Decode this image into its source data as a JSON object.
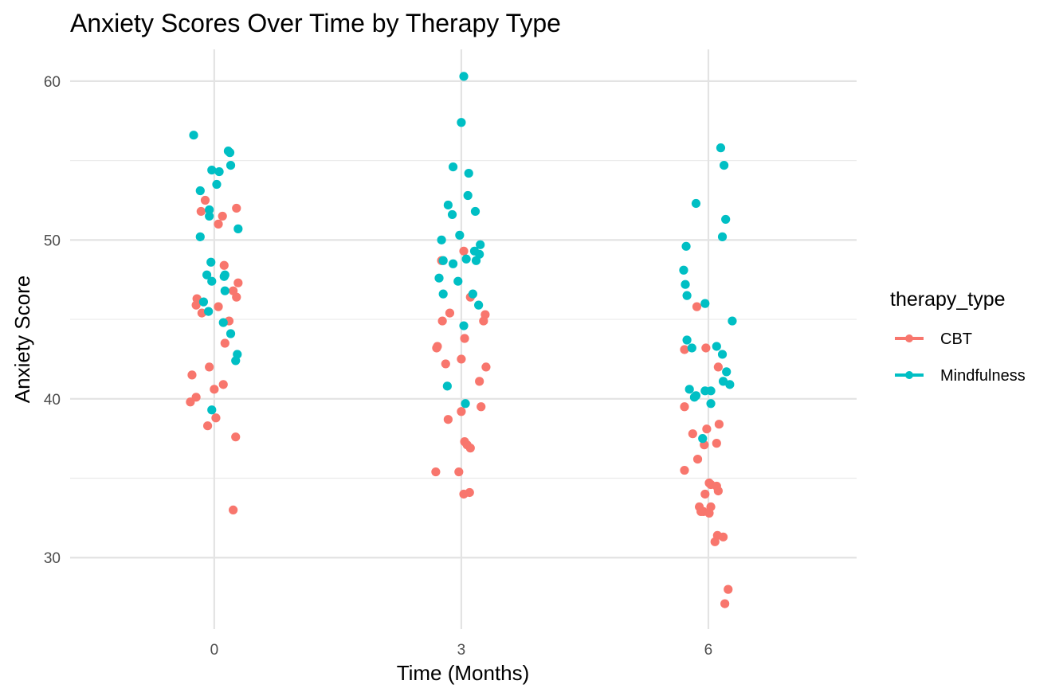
{
  "chart_data": {
    "type": "scatter",
    "title": "Anxiety Scores Over Time by Therapy Type",
    "xlabel": "Time (Months)",
    "ylabel": "Anxiety Score",
    "xlim": [
      -1.75,
      7.8
    ],
    "ylim": [
      25.5,
      62
    ],
    "x_ticks": [
      0,
      3,
      6
    ],
    "x_tick_labels": [
      "0",
      "3",
      "6"
    ],
    "y_ticks": [
      30,
      40,
      50,
      60
    ],
    "y_tick_labels": [
      "30",
      "40",
      "50",
      "60"
    ],
    "grid": true,
    "legend": {
      "title": "therapy_type",
      "position": "right"
    },
    "series": [
      {
        "name": "CBT",
        "color": "#F8766D",
        "points": [
          {
            "x": -0.11,
            "y": 52.5
          },
          {
            "x": -0.16,
            "y": 51.8
          },
          {
            "x": 0.1,
            "y": 51.5
          },
          {
            "x": 0.27,
            "y": 52.0
          },
          {
            "x": 0.05,
            "y": 51.0
          },
          {
            "x": 0.12,
            "y": 48.4
          },
          {
            "x": 0.29,
            "y": 47.3
          },
          {
            "x": 0.23,
            "y": 46.8
          },
          {
            "x": -0.21,
            "y": 46.3
          },
          {
            "x": 0.27,
            "y": 46.4
          },
          {
            "x": -0.22,
            "y": 45.9
          },
          {
            "x": 0.05,
            "y": 45.8
          },
          {
            "x": -0.15,
            "y": 45.4
          },
          {
            "x": 0.18,
            "y": 44.9
          },
          {
            "x": 0.13,
            "y": 43.5
          },
          {
            "x": -0.06,
            "y": 42.0
          },
          {
            "x": -0.27,
            "y": 41.5
          },
          {
            "x": 0.11,
            "y": 40.9
          },
          {
            "x": 0.0,
            "y": 40.6
          },
          {
            "x": -0.22,
            "y": 40.1
          },
          {
            "x": -0.29,
            "y": 39.8
          },
          {
            "x": 0.02,
            "y": 38.8
          },
          {
            "x": -0.08,
            "y": 38.3
          },
          {
            "x": 0.26,
            "y": 37.6
          },
          {
            "x": 0.23,
            "y": 33.0
          },
          {
            "x": 2.76,
            "y": 48.7
          },
          {
            "x": 3.03,
            "y": 49.3
          },
          {
            "x": 2.86,
            "y": 45.4
          },
          {
            "x": 3.29,
            "y": 45.3
          },
          {
            "x": 3.11,
            "y": 46.4
          },
          {
            "x": 2.77,
            "y": 44.9
          },
          {
            "x": 3.27,
            "y": 44.9
          },
          {
            "x": 3.04,
            "y": 43.8
          },
          {
            "x": 2.71,
            "y": 43.3
          },
          {
            "x": 2.7,
            "y": 43.2
          },
          {
            "x": 3.0,
            "y": 42.5
          },
          {
            "x": 2.81,
            "y": 42.2
          },
          {
            "x": 3.3,
            "y": 42.0
          },
          {
            "x": 3.22,
            "y": 41.1
          },
          {
            "x": 3.24,
            "y": 39.5
          },
          {
            "x": 3.0,
            "y": 39.2
          },
          {
            "x": 2.84,
            "y": 38.7
          },
          {
            "x": 3.04,
            "y": 37.3
          },
          {
            "x": 3.07,
            "y": 37.1
          },
          {
            "x": 3.11,
            "y": 36.9
          },
          {
            "x": 2.69,
            "y": 35.4
          },
          {
            "x": 2.97,
            "y": 35.4
          },
          {
            "x": 3.1,
            "y": 34.1
          },
          {
            "x": 3.03,
            "y": 34.0
          },
          {
            "x": 5.86,
            "y": 45.8
          },
          {
            "x": 5.71,
            "y": 43.1
          },
          {
            "x": 5.97,
            "y": 43.2
          },
          {
            "x": 6.12,
            "y": 42.0
          },
          {
            "x": 5.71,
            "y": 39.5
          },
          {
            "x": 6.13,
            "y": 38.4
          },
          {
            "x": 5.98,
            "y": 38.1
          },
          {
            "x": 5.81,
            "y": 37.8
          },
          {
            "x": 6.1,
            "y": 37.2
          },
          {
            "x": 5.95,
            "y": 37.1
          },
          {
            "x": 5.87,
            "y": 36.2
          },
          {
            "x": 5.71,
            "y": 35.5
          },
          {
            "x": 6.01,
            "y": 34.7
          },
          {
            "x": 6.03,
            "y": 34.6
          },
          {
            "x": 6.1,
            "y": 34.5
          },
          {
            "x": 6.12,
            "y": 34.2
          },
          {
            "x": 5.96,
            "y": 34.0
          },
          {
            "x": 5.89,
            "y": 33.2
          },
          {
            "x": 6.03,
            "y": 33.2
          },
          {
            "x": 5.91,
            "y": 32.9
          },
          {
            "x": 5.94,
            "y": 32.9
          },
          {
            "x": 6.01,
            "y": 32.8
          },
          {
            "x": 6.11,
            "y": 31.4
          },
          {
            "x": 6.18,
            "y": 31.3
          },
          {
            "x": 6.08,
            "y": 31.0
          },
          {
            "x": 6.24,
            "y": 28.0
          },
          {
            "x": 6.2,
            "y": 27.1
          }
        ]
      },
      {
        "name": "Mindfulness",
        "color": "#00BFC4",
        "points": [
          {
            "x": -0.25,
            "y": 56.6
          },
          {
            "x": 0.17,
            "y": 55.6
          },
          {
            "x": 0.19,
            "y": 55.5
          },
          {
            "x": 0.2,
            "y": 54.7
          },
          {
            "x": -0.03,
            "y": 54.4
          },
          {
            "x": 0.06,
            "y": 54.3
          },
          {
            "x": 0.03,
            "y": 53.5
          },
          {
            "x": -0.17,
            "y": 53.1
          },
          {
            "x": -0.06,
            "y": 51.9
          },
          {
            "x": -0.06,
            "y": 51.5
          },
          {
            "x": 0.29,
            "y": 50.7
          },
          {
            "x": -0.17,
            "y": 50.2
          },
          {
            "x": -0.04,
            "y": 48.6
          },
          {
            "x": 0.12,
            "y": 47.7
          },
          {
            "x": -0.09,
            "y": 47.8
          },
          {
            "x": 0.13,
            "y": 47.8
          },
          {
            "x": -0.03,
            "y": 47.4
          },
          {
            "x": 0.13,
            "y": 46.8
          },
          {
            "x": -0.13,
            "y": 46.1
          },
          {
            "x": -0.07,
            "y": 45.5
          },
          {
            "x": 0.11,
            "y": 44.8
          },
          {
            "x": 0.2,
            "y": 44.1
          },
          {
            "x": 0.28,
            "y": 42.8
          },
          {
            "x": 0.26,
            "y": 42.4
          },
          {
            "x": -0.03,
            "y": 39.3
          },
          {
            "x": 3.03,
            "y": 60.3
          },
          {
            "x": 3.0,
            "y": 57.4
          },
          {
            "x": 2.9,
            "y": 54.6
          },
          {
            "x": 3.09,
            "y": 54.2
          },
          {
            "x": 3.08,
            "y": 52.8
          },
          {
            "x": 2.84,
            "y": 52.2
          },
          {
            "x": 2.89,
            "y": 51.6
          },
          {
            "x": 3.17,
            "y": 51.8
          },
          {
            "x": 2.98,
            "y": 50.3
          },
          {
            "x": 2.76,
            "y": 50.0
          },
          {
            "x": 3.23,
            "y": 49.7
          },
          {
            "x": 3.16,
            "y": 49.3
          },
          {
            "x": 3.22,
            "y": 49.1
          },
          {
            "x": 3.06,
            "y": 48.8
          },
          {
            "x": 3.18,
            "y": 48.7
          },
          {
            "x": 2.78,
            "y": 48.7
          },
          {
            "x": 2.9,
            "y": 48.5
          },
          {
            "x": 2.73,
            "y": 47.6
          },
          {
            "x": 2.96,
            "y": 47.4
          },
          {
            "x": 2.78,
            "y": 46.6
          },
          {
            "x": 3.14,
            "y": 46.6
          },
          {
            "x": 3.21,
            "y": 45.9
          },
          {
            "x": 3.03,
            "y": 44.6
          },
          {
            "x": 2.83,
            "y": 40.8
          },
          {
            "x": 3.05,
            "y": 39.7
          },
          {
            "x": 6.15,
            "y": 55.8
          },
          {
            "x": 6.19,
            "y": 54.7
          },
          {
            "x": 5.85,
            "y": 52.3
          },
          {
            "x": 6.21,
            "y": 51.3
          },
          {
            "x": 6.17,
            "y": 50.2
          },
          {
            "x": 5.73,
            "y": 49.6
          },
          {
            "x": 5.7,
            "y": 48.1
          },
          {
            "x": 5.72,
            "y": 47.2
          },
          {
            "x": 5.74,
            "y": 46.5
          },
          {
            "x": 5.96,
            "y": 46.0
          },
          {
            "x": 6.29,
            "y": 44.9
          },
          {
            "x": 5.74,
            "y": 43.7
          },
          {
            "x": 5.8,
            "y": 43.2
          },
          {
            "x": 6.1,
            "y": 43.3
          },
          {
            "x": 6.17,
            "y": 42.8
          },
          {
            "x": 6.22,
            "y": 41.7
          },
          {
            "x": 6.18,
            "y": 41.1
          },
          {
            "x": 6.26,
            "y": 40.9
          },
          {
            "x": 5.77,
            "y": 40.6
          },
          {
            "x": 5.96,
            "y": 40.5
          },
          {
            "x": 6.03,
            "y": 40.5
          },
          {
            "x": 5.85,
            "y": 40.2
          },
          {
            "x": 5.83,
            "y": 40.1
          },
          {
            "x": 6.03,
            "y": 39.7
          },
          {
            "x": 5.93,
            "y": 37.5
          }
        ]
      }
    ]
  }
}
